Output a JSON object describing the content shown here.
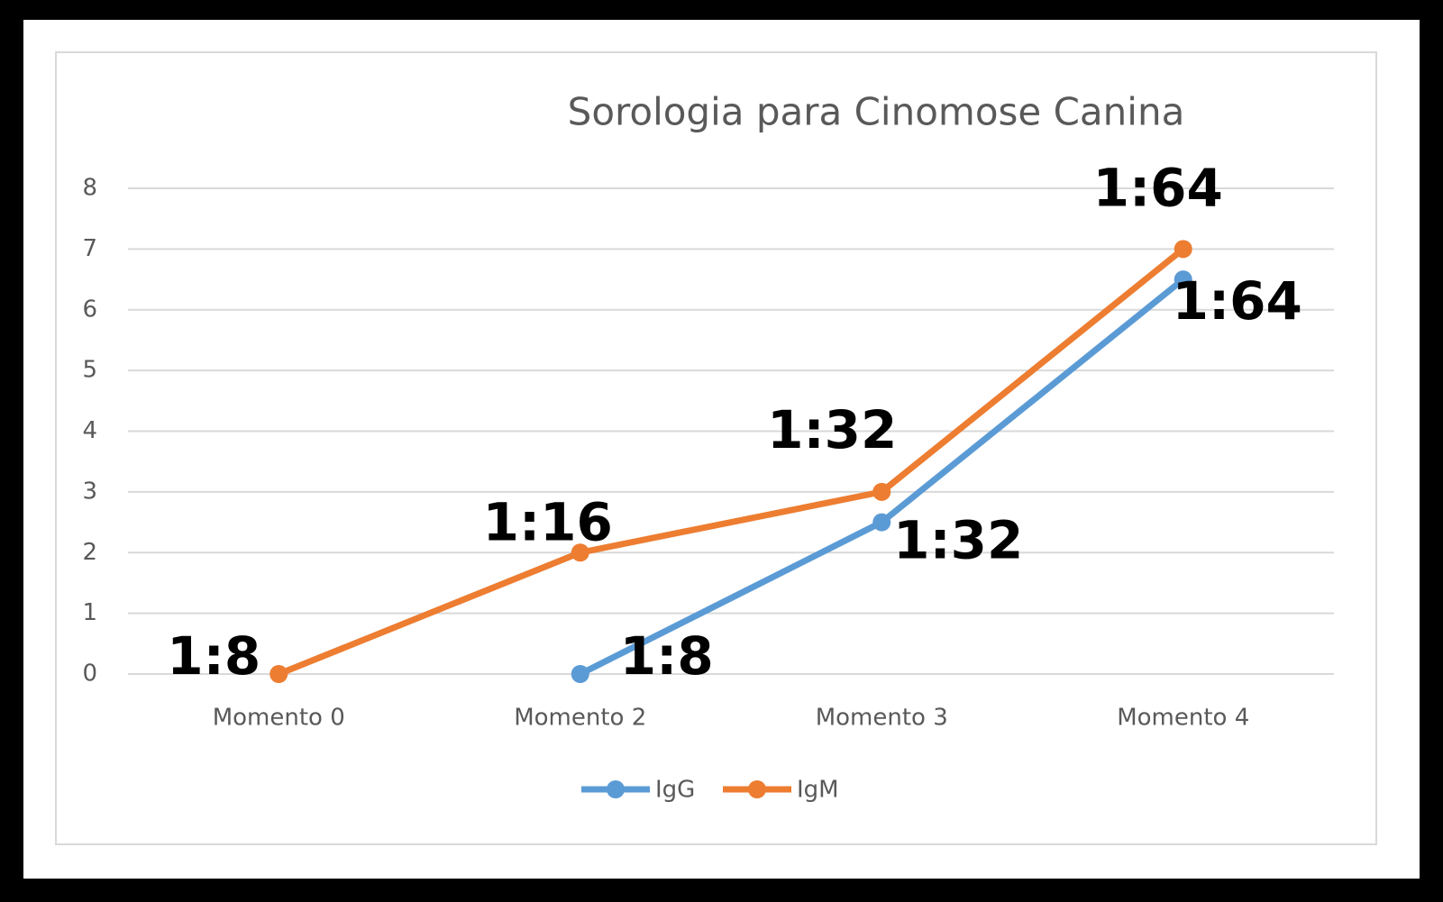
{
  "chart_data": {
    "type": "line",
    "title": "Sorologia para Cinomose  Canina",
    "categories": [
      "Momento 0",
      "Momento 2",
      "Momento 3",
      "Momento 4"
    ],
    "series": [
      {
        "name": "IgG",
        "color": "#5b9bd5",
        "values": [
          null,
          0,
          2.5,
          6.5
        ],
        "value_labels": [
          null,
          "1:8",
          "1:32",
          "1:64"
        ]
      },
      {
        "name": "IgM",
        "color": "#ed7d31",
        "values": [
          0,
          2,
          3,
          7
        ],
        "value_labels": [
          "1:8",
          "1:16",
          "1:32",
          "1:64"
        ]
      }
    ],
    "ylim": [
      0,
      8
    ],
    "yticks": [
      0,
      1,
      2,
      3,
      4,
      5,
      6,
      7,
      8
    ],
    "grid": true,
    "legend": "bottom"
  }
}
